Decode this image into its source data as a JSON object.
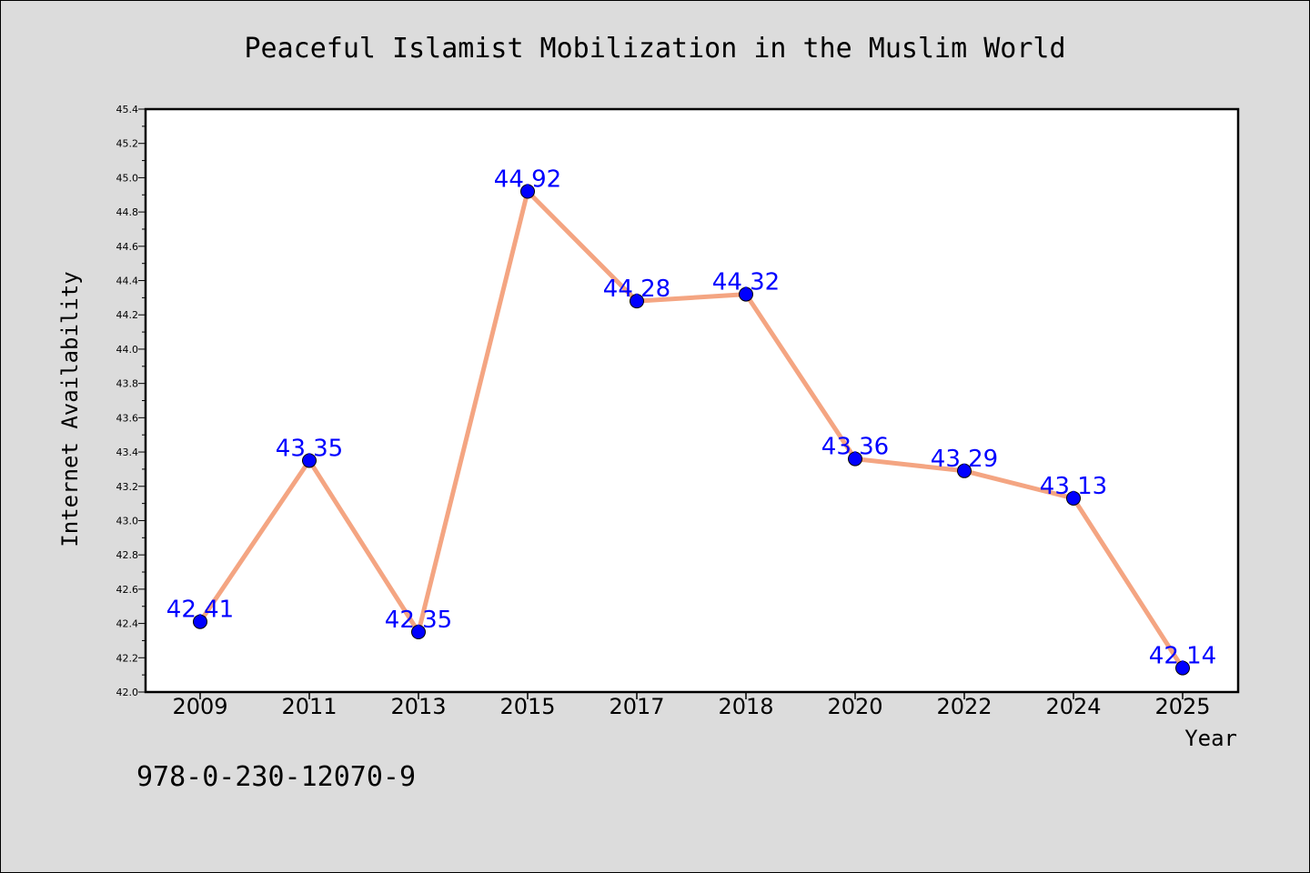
{
  "chart_data": {
    "type": "line",
    "title": "Peaceful Islamist Mobilization in the Muslim World",
    "xlabel": "Year",
    "ylabel": "Internet Availability",
    "categories": [
      "2009",
      "2011",
      "2013",
      "2015",
      "2017",
      "2018",
      "2020",
      "2022",
      "2024",
      "2025"
    ],
    "values": [
      42.41,
      43.35,
      42.35,
      44.92,
      44.28,
      44.32,
      43.36,
      43.29,
      43.13,
      42.14
    ],
    "data_labels": [
      "42.41",
      "43.35",
      "42.35",
      "44.92",
      "44.28",
      "44.32",
      "43.36",
      "43.29",
      "43.13",
      "42.14"
    ],
    "ylim": [
      42.0,
      45.4
    ],
    "yticks": [
      "42.0",
      "42.2",
      "42.4",
      "42.6",
      "42.8",
      "43.0",
      "43.2",
      "43.4",
      "43.6",
      "43.8",
      "44.0",
      "44.2",
      "44.4",
      "44.6",
      "44.8",
      "45.0",
      "45.2",
      "45.4"
    ],
    "line_color": "#f4a582",
    "marker_color": "#0000ff",
    "label_color": "#0000ff",
    "grid": false,
    "legend": "none"
  },
  "footer": {
    "isbn": "978-0-230-12070-9"
  }
}
